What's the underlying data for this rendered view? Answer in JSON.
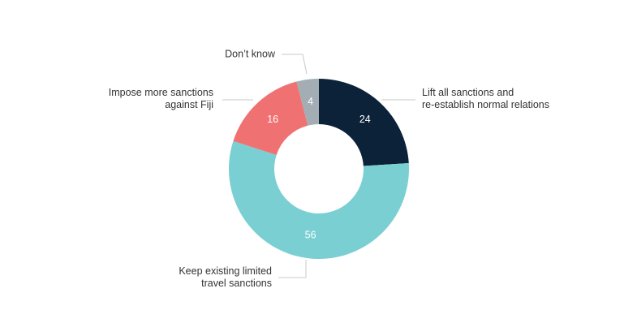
{
  "chart_data": {
    "type": "donut",
    "categories": [
      "Lift all sanctions and\nre-establish normal relations",
      "Keep existing limited\ntravel sanctions",
      "Impose more sanctions\nagainst Fiji",
      "Don’t know"
    ],
    "values": [
      24,
      56,
      16,
      4
    ],
    "colors": [
      "#0b2239",
      "#7acfd3",
      "#f07171",
      "#a3adb3"
    ]
  }
}
